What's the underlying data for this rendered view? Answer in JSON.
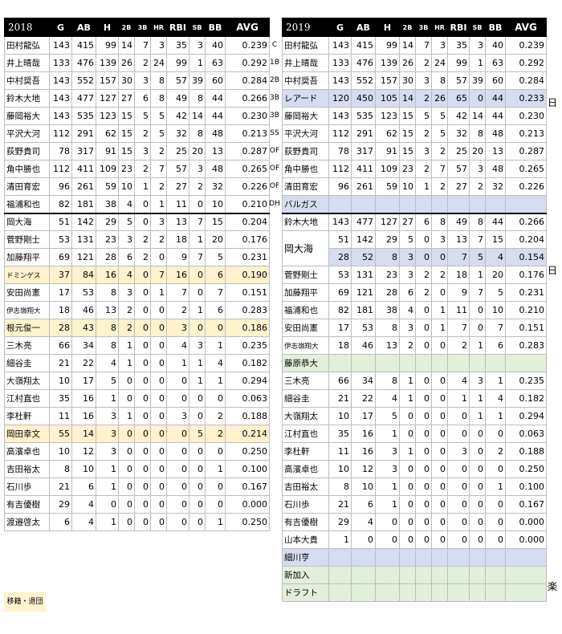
{
  "left": {
    "year": "2018",
    "headers": [
      "G",
      "AB",
      "H",
      "2B",
      "3B",
      "HR",
      "RBI",
      "SB",
      "BB",
      "AVG"
    ],
    "rows": [
      {
        "name": "田村龍弘",
        "v": [
          "143",
          "415",
          "99",
          "14",
          "7",
          "3",
          "35",
          "3",
          "40",
          "0.239"
        ]
      },
      {
        "name": "井上晴哉",
        "v": [
          "133",
          "476",
          "139",
          "26",
          "2",
          "24",
          "99",
          "1",
          "63",
          "0.292"
        ]
      },
      {
        "name": "中村奨吾",
        "v": [
          "143",
          "552",
          "157",
          "30",
          "3",
          "8",
          "57",
          "39",
          "60",
          "0.284"
        ]
      },
      {
        "name": "鈴木大地",
        "v": [
          "143",
          "477",
          "127",
          "27",
          "6",
          "8",
          "49",
          "8",
          "44",
          "0.266"
        ]
      },
      {
        "name": "藤岡裕大",
        "v": [
          "143",
          "535",
          "123",
          "15",
          "5",
          "5",
          "42",
          "14",
          "44",
          "0.230"
        ]
      },
      {
        "name": "平沢大河",
        "v": [
          "112",
          "291",
          "62",
          "15",
          "2",
          "5",
          "32",
          "8",
          "48",
          "0.213"
        ]
      },
      {
        "name": "荻野貴司",
        "v": [
          "78",
          "317",
          "91",
          "15",
          "3",
          "2",
          "25",
          "20",
          "13",
          "0.287"
        ]
      },
      {
        "name": "角中勝也",
        "v": [
          "112",
          "411",
          "109",
          "23",
          "2",
          "7",
          "57",
          "3",
          "48",
          "0.265"
        ]
      },
      {
        "name": "清田育宏",
        "v": [
          "96",
          "261",
          "59",
          "10",
          "1",
          "2",
          "27",
          "2",
          "32",
          "0.226"
        ]
      },
      {
        "name": "福浦和也",
        "v": [
          "82",
          "181",
          "38",
          "4",
          "0",
          "1",
          "11",
          "0",
          "10",
          "0.210"
        ]
      },
      {
        "name": "岡大海",
        "v": [
          "51",
          "142",
          "29",
          "5",
          "0",
          "3",
          "13",
          "7",
          "15",
          "0.204"
        ]
      },
      {
        "name": "菅野剛士",
        "v": [
          "53",
          "131",
          "23",
          "3",
          "2",
          "2",
          "18",
          "1",
          "20",
          "0.176"
        ]
      },
      {
        "name": "加藤翔平",
        "v": [
          "69",
          "121",
          "28",
          "6",
          "2",
          "0",
          "9",
          "7",
          "5",
          "0.231"
        ]
      },
      {
        "name": "ドミンゲス",
        "v": [
          "37",
          "84",
          "16",
          "4",
          "0",
          "7",
          "16",
          "0",
          "6",
          "0.190"
        ]
      },
      {
        "name": "安田尚憲",
        "v": [
          "17",
          "53",
          "8",
          "3",
          "0",
          "1",
          "7",
          "0",
          "7",
          "0.151"
        ]
      },
      {
        "name": "伊志嶺翔大",
        "v": [
          "18",
          "46",
          "13",
          "2",
          "0",
          "0",
          "2",
          "1",
          "6",
          "0.283"
        ]
      },
      {
        "name": "根元俊一",
        "v": [
          "28",
          "43",
          "8",
          "2",
          "0",
          "0",
          "3",
          "0",
          "0",
          "0.186"
        ]
      },
      {
        "name": "三木亮",
        "v": [
          "66",
          "34",
          "8",
          "1",
          "0",
          "0",
          "4",
          "3",
          "1",
          "0.235"
        ]
      },
      {
        "name": "細谷圭",
        "v": [
          "21",
          "22",
          "4",
          "1",
          "0",
          "0",
          "1",
          "1",
          "4",
          "0.182"
        ]
      },
      {
        "name": "大嶺翔太",
        "v": [
          "10",
          "17",
          "5",
          "0",
          "0",
          "0",
          "0",
          "1",
          "1",
          "0.294"
        ]
      },
      {
        "name": "江村直也",
        "v": [
          "35",
          "16",
          "1",
          "0",
          "0",
          "0",
          "0",
          "0",
          "0",
          "0.063"
        ]
      },
      {
        "name": "李杜軒",
        "v": [
          "11",
          "16",
          "3",
          "1",
          "0",
          "0",
          "3",
          "0",
          "2",
          "0.188"
        ]
      },
      {
        "name": "岡田幸文",
        "v": [
          "55",
          "14",
          "3",
          "0",
          "0",
          "0",
          "0",
          "5",
          "2",
          "0.214"
        ]
      },
      {
        "name": "高濱卓也",
        "v": [
          "10",
          "12",
          "3",
          "0",
          "0",
          "0",
          "0",
          "0",
          "0",
          "0.250"
        ]
      },
      {
        "name": "吉田裕太",
        "v": [
          "8",
          "10",
          "1",
          "0",
          "0",
          "0",
          "0",
          "0",
          "1",
          "0.100"
        ]
      },
      {
        "name": "石川歩",
        "v": [
          "21",
          "6",
          "1",
          "0",
          "0",
          "0",
          "0",
          "0",
          "0",
          "0.167"
        ]
      },
      {
        "name": "有吉優樹",
        "v": [
          "29",
          "4",
          "0",
          "0",
          "0",
          "0",
          "0",
          "0",
          "0",
          "0.000"
        ]
      },
      {
        "name": "渡邉啓太",
        "v": [
          "6",
          "4",
          "1",
          "0",
          "0",
          "0",
          "0",
          "0",
          "1",
          "0.250"
        ]
      }
    ]
  },
  "positions": [
    "C",
    "1B",
    "2B",
    "3B",
    "3B",
    "SS",
    "OF",
    "OF",
    "OF",
    "DH"
  ],
  "right": {
    "year": "2019",
    "headers": [
      "G",
      "AB",
      "H",
      "2B",
      "3B",
      "HR",
      "RBI",
      "SB",
      "BB",
      "AVG"
    ],
    "rows": [
      {
        "name": "田村龍弘",
        "v": [
          "143",
          "415",
          "99",
          "14",
          "7",
          "3",
          "35",
          "3",
          "40",
          "0.239"
        ]
      },
      {
        "name": "井上晴哉",
        "v": [
          "133",
          "476",
          "139",
          "26",
          "2",
          "24",
          "99",
          "1",
          "63",
          "0.292"
        ]
      },
      {
        "name": "中村奨吾",
        "v": [
          "143",
          "552",
          "157",
          "30",
          "3",
          "8",
          "57",
          "39",
          "60",
          "0.284"
        ]
      },
      {
        "name": "レアード",
        "v": [
          "120",
          "450",
          "105",
          "14",
          "2",
          "26",
          "65",
          "0",
          "44",
          "0.233"
        ]
      },
      {
        "name": "藤岡裕大",
        "v": [
          "143",
          "535",
          "123",
          "15",
          "5",
          "5",
          "42",
          "14",
          "44",
          "0.230"
        ]
      },
      {
        "name": "平沢大河",
        "v": [
          "112",
          "291",
          "62",
          "15",
          "2",
          "5",
          "32",
          "8",
          "48",
          "0.213"
        ]
      },
      {
        "name": "荻野貴司",
        "v": [
          "78",
          "317",
          "91",
          "15",
          "3",
          "2",
          "25",
          "20",
          "13",
          "0.287"
        ]
      },
      {
        "name": "角中勝也",
        "v": [
          "112",
          "411",
          "109",
          "23",
          "2",
          "7",
          "57",
          "3",
          "48",
          "0.265"
        ]
      },
      {
        "name": "清田育宏",
        "v": [
          "96",
          "261",
          "59",
          "10",
          "1",
          "2",
          "27",
          "2",
          "32",
          "0.226"
        ]
      },
      {
        "name": "バルガス",
        "v": [
          "",
          "",
          "",
          "",
          "",
          "",
          "",
          "",
          "",
          ""
        ]
      },
      {
        "name": "鈴木大地",
        "v": [
          "143",
          "477",
          "127",
          "27",
          "6",
          "8",
          "49",
          "8",
          "44",
          "0.266"
        ]
      },
      {
        "name": "岡大海",
        "v": [
          "51",
          "142",
          "29",
          "5",
          "0",
          "3",
          "13",
          "7",
          "15",
          "0.204"
        ],
        "v2": [
          "28",
          "52",
          "8",
          "3",
          "0",
          "0",
          "7",
          "5",
          "4",
          "0.154"
        ]
      },
      {
        "name": "菅野剛士",
        "v": [
          "53",
          "131",
          "23",
          "3",
          "2",
          "2",
          "18",
          "1",
          "20",
          "0.176"
        ]
      },
      {
        "name": "加藤翔平",
        "v": [
          "69",
          "121",
          "28",
          "6",
          "2",
          "0",
          "9",
          "7",
          "5",
          "0.231"
        ]
      },
      {
        "name": "福浦和也",
        "v": [
          "82",
          "181",
          "38",
          "4",
          "0",
          "1",
          "11",
          "0",
          "10",
          "0.210"
        ]
      },
      {
        "name": "安田尚憲",
        "v": [
          "17",
          "53",
          "8",
          "3",
          "0",
          "1",
          "7",
          "0",
          "7",
          "0.151"
        ]
      },
      {
        "name": "伊志嶺翔大",
        "v": [
          "18",
          "46",
          "13",
          "2",
          "0",
          "0",
          "2",
          "1",
          "6",
          "0.283"
        ]
      },
      {
        "name": "藤原恭大",
        "v": [
          "",
          "",
          "",
          "",
          "",
          "",
          "",
          "",
          "",
          ""
        ]
      },
      {
        "name": "三木亮",
        "v": [
          "66",
          "34",
          "8",
          "1",
          "0",
          "0",
          "4",
          "3",
          "1",
          "0.235"
        ]
      },
      {
        "name": "細谷圭",
        "v": [
          "21",
          "22",
          "4",
          "1",
          "0",
          "0",
          "1",
          "1",
          "4",
          "0.182"
        ]
      },
      {
        "name": "大嶺翔太",
        "v": [
          "10",
          "17",
          "5",
          "0",
          "0",
          "0",
          "0",
          "1",
          "1",
          "0.294"
        ]
      },
      {
        "name": "江村直也",
        "v": [
          "35",
          "16",
          "1",
          "0",
          "0",
          "0",
          "0",
          "0",
          "0",
          "0.063"
        ]
      },
      {
        "name": "李杜軒",
        "v": [
          "11",
          "16",
          "3",
          "1",
          "0",
          "0",
          "3",
          "0",
          "2",
          "0.188"
        ]
      },
      {
        "name": "高濱卓也",
        "v": [
          "10",
          "12",
          "3",
          "0",
          "0",
          "0",
          "0",
          "0",
          "0",
          "0.250"
        ]
      },
      {
        "name": "吉田裕太",
        "v": [
          "8",
          "10",
          "1",
          "0",
          "0",
          "0",
          "0",
          "0",
          "1",
          "0.100"
        ]
      },
      {
        "name": "石川歩",
        "v": [
          "21",
          "6",
          "1",
          "0",
          "0",
          "0",
          "0",
          "0",
          "0",
          "0.167"
        ]
      },
      {
        "name": "有吉優樹",
        "v": [
          "29",
          "4",
          "0",
          "0",
          "0",
          "0",
          "0",
          "0",
          "0",
          "0.000"
        ]
      },
      {
        "name": "山本大貴",
        "v": [
          "1",
          "0",
          "0",
          "0",
          "0",
          "0",
          "0",
          "0",
          "0",
          "0.000"
        ]
      },
      {
        "name": "細川亨",
        "v": [
          "",
          "",
          "",
          "",
          "",
          "",
          "",
          "",
          "",
          ""
        ]
      },
      {
        "name": "新加入",
        "v": [
          "",
          "",
          "",
          "",
          "",
          "",
          "",
          "",
          "",
          ""
        ]
      },
      {
        "name": "ドラフト",
        "v": [
          "",
          "",
          "",
          "",
          "",
          "",
          "",
          "",
          "",
          ""
        ]
      }
    ]
  },
  "side_notes": {
    "laird": "日",
    "oka": "日",
    "hosokawa": "楽"
  },
  "legend": "移籍・退団"
}
